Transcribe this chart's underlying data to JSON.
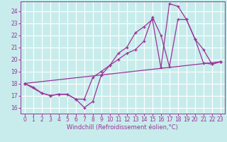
{
  "xlabel": "Windchill (Refroidissement éolien,°C)",
  "bg_color": "#c8ecec",
  "line_color": "#993399",
  "grid_color": "#ffffff",
  "spine_color": "#993399",
  "xlim": [
    -0.5,
    23.5
  ],
  "ylim": [
    15.5,
    24.8
  ],
  "xticks": [
    0,
    1,
    2,
    3,
    4,
    5,
    6,
    7,
    8,
    9,
    10,
    11,
    12,
    13,
    14,
    15,
    16,
    17,
    18,
    19,
    20,
    21,
    22,
    23
  ],
  "yticks": [
    16,
    17,
    18,
    19,
    20,
    21,
    22,
    23,
    24
  ],
  "line1_x": [
    0,
    1,
    2,
    3,
    4,
    5,
    6,
    7,
    8,
    9,
    10,
    11,
    12,
    13,
    14,
    15,
    16,
    17,
    18,
    19,
    20,
    21,
    22,
    23
  ],
  "line1_y": [
    18.0,
    17.7,
    17.2,
    17.0,
    17.1,
    17.1,
    16.7,
    16.0,
    16.5,
    18.7,
    19.5,
    20.5,
    21.0,
    22.2,
    22.7,
    23.3,
    19.3,
    24.6,
    24.4,
    23.3,
    21.7,
    20.8,
    19.6,
    19.8
  ],
  "line2_x": [
    0,
    2,
    3,
    4,
    5,
    6,
    7,
    8,
    9,
    10,
    11,
    12,
    13,
    14,
    15,
    16,
    17,
    18,
    19,
    20,
    21,
    22,
    23
  ],
  "line2_y": [
    18.0,
    17.2,
    17.0,
    17.1,
    17.1,
    16.7,
    16.7,
    18.5,
    19.0,
    19.5,
    20.0,
    20.5,
    20.8,
    21.5,
    23.5,
    22.0,
    19.4,
    23.3,
    23.3,
    21.7,
    19.7,
    19.6,
    19.8
  ],
  "line3_x": [
    0,
    23
  ],
  "line3_y": [
    18.0,
    19.8
  ],
  "tick_fontsize": 5.5,
  "xlabel_fontsize": 6.0
}
